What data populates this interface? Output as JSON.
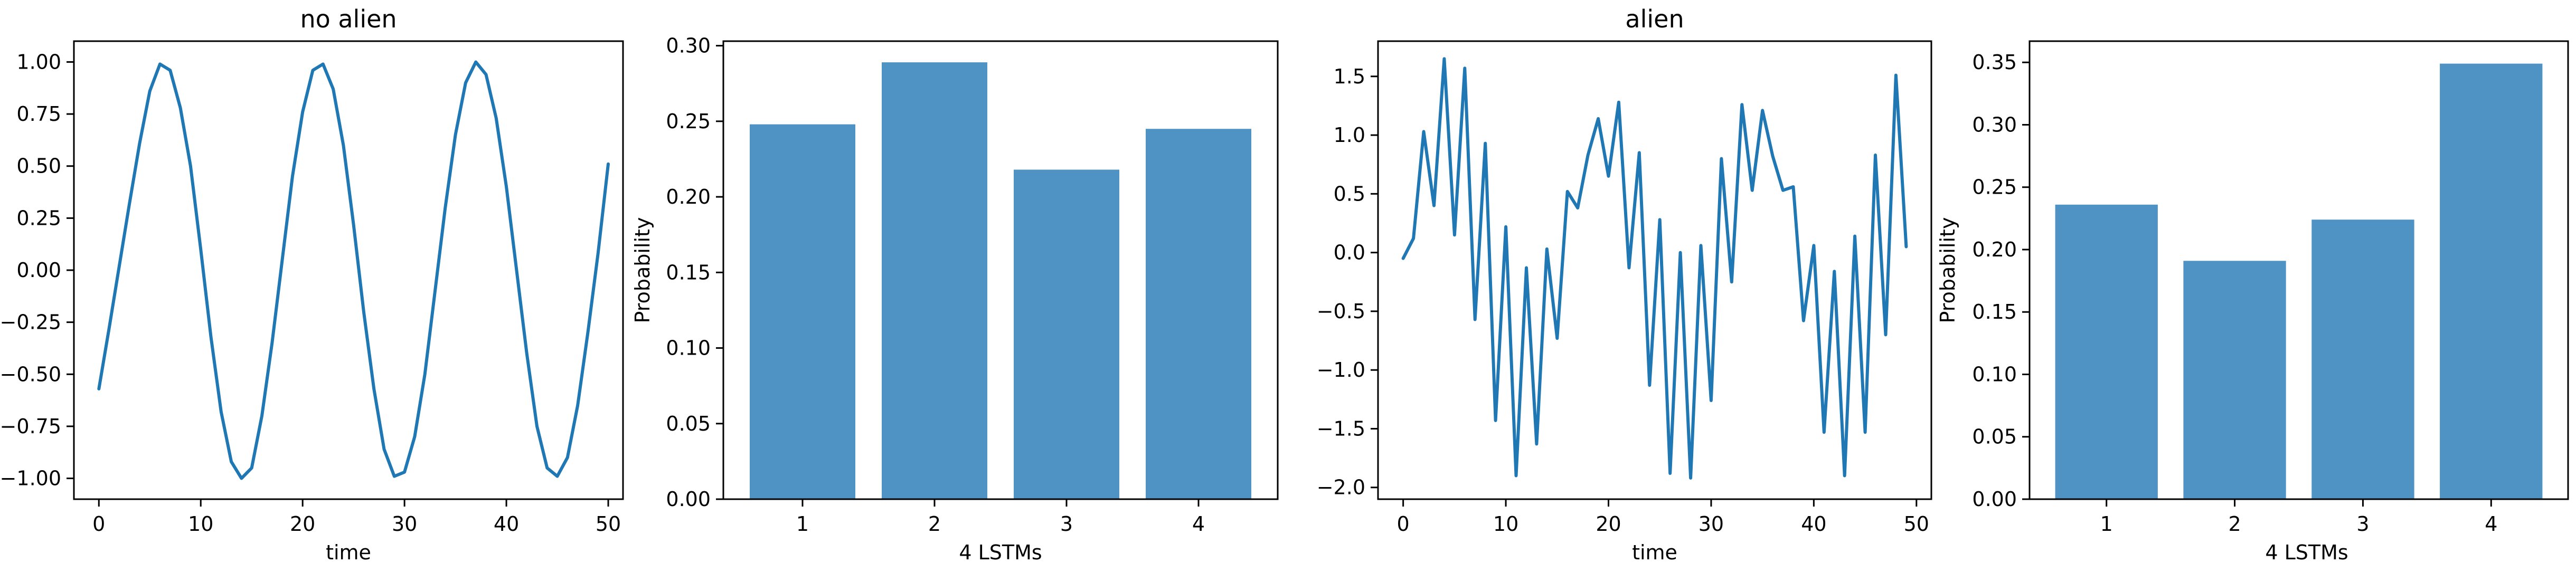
{
  "colors": {
    "line": "#1f77b4",
    "bar": "#4f93c4",
    "axes": "#000000",
    "background": "#ffffff"
  },
  "chart_data": [
    {
      "type": "line",
      "title": "no alien",
      "xlabel": "time",
      "ylabel": "",
      "xlim": [
        -2.45,
        51.45
      ],
      "ylim": [
        -1.1,
        1.1
      ],
      "xticks": [
        0,
        10,
        20,
        30,
        40,
        50
      ],
      "yticks": [
        -1.0,
        -0.75,
        -0.5,
        -0.25,
        0.0,
        0.25,
        0.5,
        0.75,
        1.0
      ],
      "ytick_labels": [
        "−1.00",
        "−0.75",
        "−0.50",
        "−0.25",
        "0.00",
        "0.25",
        "0.50",
        "0.75",
        "1.00"
      ],
      "grid": false,
      "series": [
        {
          "values": [
            -0.57,
            -0.28,
            0.02,
            0.32,
            0.61,
            0.86,
            0.99,
            0.96,
            0.78,
            0.5,
            0.1,
            -0.32,
            -0.68,
            -0.92,
            -1.0,
            -0.95,
            -0.7,
            -0.35,
            0.05,
            0.45,
            0.76,
            0.96,
            0.99,
            0.87,
            0.6,
            0.22,
            -0.2,
            -0.57,
            -0.86,
            -0.99,
            -0.97,
            -0.8,
            -0.5,
            -0.1,
            0.3,
            0.65,
            0.9,
            1.0,
            0.94,
            0.73,
            0.4,
            0.0,
            -0.4,
            -0.75,
            -0.95,
            -0.99,
            -0.9,
            -0.65,
            -0.3,
            0.08,
            0.51
          ]
        }
      ]
    },
    {
      "type": "bar",
      "title": "",
      "xlabel": "4 LSTMs",
      "ylabel": "Probability",
      "categories": [
        "1",
        "2",
        "3",
        "4"
      ],
      "values": [
        0.248,
        0.289,
        0.218,
        0.245
      ],
      "ylim": [
        0,
        0.303
      ],
      "yticks": [
        0.0,
        0.05,
        0.1,
        0.15,
        0.2,
        0.25,
        0.3
      ],
      "ytick_labels": [
        "0.00",
        "0.05",
        "0.10",
        "0.15",
        "0.20",
        "0.25",
        "0.30"
      ],
      "grid": false
    },
    {
      "type": "line",
      "title": "alien",
      "xlabel": "time",
      "ylabel": "",
      "xlim": [
        -2.45,
        51.45
      ],
      "ylim": [
        -2.1,
        1.8
      ],
      "xticks": [
        0,
        10,
        20,
        30,
        40,
        50
      ],
      "yticks": [
        -2.0,
        -1.5,
        -1.0,
        -0.5,
        0.0,
        0.5,
        1.0,
        1.5
      ],
      "ytick_labels": [
        "−2.0",
        "−1.5",
        "−1.0",
        "−0.5",
        "0.0",
        "0.5",
        "1.0",
        "1.5"
      ],
      "grid": false,
      "series": [
        {
          "values": [
            -0.05,
            0.12,
            1.03,
            0.4,
            1.65,
            0.15,
            1.57,
            -0.57,
            0.93,
            -1.43,
            0.22,
            -1.9,
            -0.13,
            -1.63,
            0.03,
            -0.73,
            0.52,
            0.38,
            0.83,
            1.14,
            0.65,
            1.28,
            -0.13,
            0.85,
            -1.13,
            0.28,
            -1.88,
            0.0,
            -1.92,
            0.06,
            -1.26,
            0.8,
            -0.25,
            1.26,
            0.53,
            1.21,
            0.82,
            0.53,
            0.56,
            -0.58,
            0.06,
            -1.53,
            -0.16,
            -1.9,
            0.14,
            -1.53,
            0.83,
            -0.7,
            1.51,
            0.05
          ]
        }
      ]
    },
    {
      "type": "bar",
      "title": "",
      "xlabel": "4 LSTMs",
      "ylabel": "Probability",
      "categories": [
        "1",
        "2",
        "3",
        "4"
      ],
      "values": [
        0.236,
        0.191,
        0.224,
        0.349
      ],
      "ylim": [
        0,
        0.367
      ],
      "yticks": [
        0.0,
        0.05,
        0.1,
        0.15,
        0.2,
        0.25,
        0.3,
        0.35
      ],
      "ytick_labels": [
        "0.00",
        "0.05",
        "0.10",
        "0.15",
        "0.20",
        "0.25",
        "0.30",
        "0.35"
      ],
      "grid": false
    }
  ]
}
